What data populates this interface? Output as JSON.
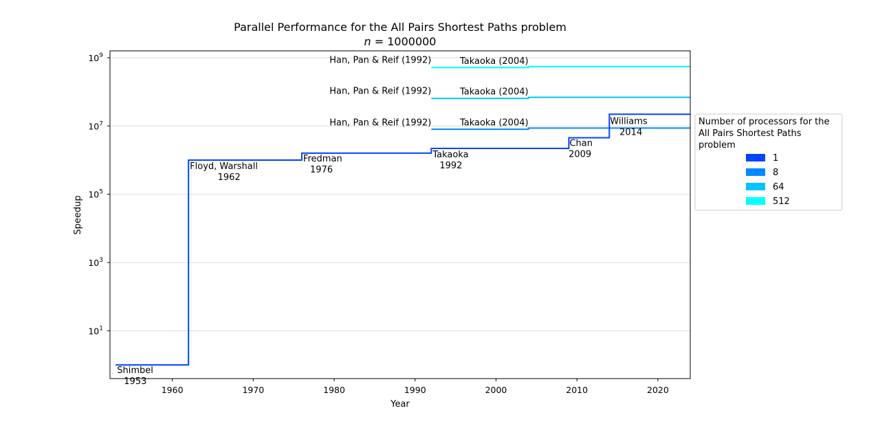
{
  "chart_data": {
    "type": "line",
    "title": "Parallel Performance for the All Pairs Shortest Paths problem",
    "subtitle_var": "n",
    "subtitle_eq": " = 1000000",
    "xlabel": "Year",
    "ylabel": "Speedup",
    "xlim": [
      1952.3,
      2024
    ],
    "ylog": true,
    "ylim_log10": [
      -0.4,
      9.2
    ],
    "xticks": [
      1960,
      1970,
      1980,
      1990,
      2000,
      2010,
      2020
    ],
    "yticks": [
      {
        "base": "10",
        "exp": "1",
        "value": 10
      },
      {
        "base": "10",
        "exp": "3",
        "value": 1000
      },
      {
        "base": "10",
        "exp": "5",
        "value": 100000
      },
      {
        "base": "10",
        "exp": "7",
        "value": 10000000
      },
      {
        "base": "10",
        "exp": "9",
        "value": 1000000000
      }
    ],
    "grid": "horizontal",
    "legend": {
      "title_lines": [
        "Number of processors for the",
        "All Pairs Shortest Paths",
        "problem"
      ],
      "placement": "right, outside plot area",
      "entries": [
        "1",
        "8",
        "64",
        "512"
      ]
    },
    "series": [
      {
        "name": "1",
        "color": "#0044ff",
        "points": [
          [
            1953,
            1
          ],
          [
            1962,
            1000000
          ],
          [
            1976,
            1600000
          ],
          [
            1992,
            2200000
          ],
          [
            2009,
            4500000
          ],
          [
            2014,
            22000000
          ],
          [
            2024,
            22000000
          ]
        ]
      },
      {
        "name": "8",
        "color": "#0088ff",
        "points": [
          [
            1992,
            8000000
          ],
          [
            2004,
            8700000
          ],
          [
            2024,
            8700000
          ]
        ]
      },
      {
        "name": "64",
        "color": "#00c4ff",
        "points": [
          [
            1992,
            64000000
          ],
          [
            2004,
            69000000
          ],
          [
            2024,
            69000000
          ]
        ]
      },
      {
        "name": "512",
        "color": "#00ffff",
        "points": [
          [
            1992,
            512000000
          ],
          [
            2004,
            550000000
          ],
          [
            2024,
            550000000
          ]
        ]
      }
    ],
    "annotations": [
      {
        "lines": [
          "Shimbel",
          "1953"
        ],
        "x": 1953,
        "y": 1
      },
      {
        "lines": [
          "Floyd, Warshall",
          "1962"
        ],
        "x": 1962,
        "y": 1000000
      },
      {
        "lines": [
          "Fredman",
          "1976"
        ],
        "x": 1976,
        "y": 1600000
      },
      {
        "lines": [
          "Takaoka",
          "1992"
        ],
        "x": 1992,
        "y": 2200000
      },
      {
        "lines": [
          "Chan",
          "2009"
        ],
        "x": 2009,
        "y": 4500000
      },
      {
        "lines": [
          "Williams",
          "2014"
        ],
        "x": 2014,
        "y": 22000000
      },
      {
        "lines": [
          "Han, Pan & Reif (1992)"
        ],
        "x": 1992,
        "y": 10000000
      },
      {
        "lines": [
          "Han, Pan & Reif (1992)"
        ],
        "x": 1992,
        "y": 80000000
      },
      {
        "lines": [
          "Han, Pan & Reif (1992)"
        ],
        "x": 1992,
        "y": 640000000
      },
      {
        "lines": [
          "Takaoka (2004)"
        ],
        "x": 2004,
        "y": 8700000
      },
      {
        "lines": [
          "Takaoka (2004)"
        ],
        "x": 2004,
        "y": 69000000
      },
      {
        "lines": [
          "Takaoka (2004)"
        ],
        "x": 2004,
        "y": 550000000
      }
    ]
  }
}
